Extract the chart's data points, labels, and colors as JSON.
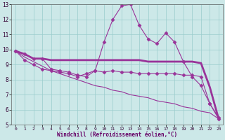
{
  "xlabel": "Windchill (Refroidissement éolien,°C)",
  "xlim": [
    -0.5,
    23.5
  ],
  "ylim": [
    5,
    13
  ],
  "xticks": [
    0,
    1,
    2,
    3,
    4,
    5,
    6,
    7,
    8,
    9,
    10,
    11,
    12,
    13,
    14,
    15,
    16,
    17,
    18,
    19,
    20,
    21,
    22,
    23
  ],
  "yticks": [
    5,
    6,
    7,
    8,
    9,
    10,
    11,
    12,
    13
  ],
  "background_color": "#cce8e8",
  "line_color": "#993399",
  "grid_color": "#99cccc",
  "series": [
    {
      "x": [
        0,
        1,
        2,
        3,
        4,
        5,
        6,
        7,
        8,
        9,
        10,
        11,
        12,
        13,
        14,
        15,
        16,
        17,
        18,
        19,
        20,
        21,
        22,
        23
      ],
      "y": [
        9.9,
        9.7,
        9.4,
        9.4,
        8.7,
        8.6,
        8.5,
        8.3,
        8.2,
        8.6,
        10.5,
        12.0,
        12.9,
        13.0,
        11.6,
        10.7,
        10.4,
        11.1,
        10.5,
        9.2,
        8.2,
        7.6,
        6.4,
        5.5
      ],
      "marker": "D",
      "markersize": 2.5,
      "linewidth": 0.8
    },
    {
      "x": [
        0,
        1,
        2,
        3,
        4,
        5,
        6,
        7,
        8,
        9,
        10,
        11,
        12,
        13,
        14,
        15,
        16,
        17,
        18,
        19,
        20,
        21,
        22,
        23
      ],
      "y": [
        9.9,
        9.7,
        9.4,
        9.4,
        9.3,
        9.3,
        9.3,
        9.3,
        9.3,
        9.3,
        9.3,
        9.3,
        9.3,
        9.3,
        9.3,
        9.2,
        9.2,
        9.2,
        9.2,
        9.2,
        9.2,
        9.1,
        7.5,
        5.4
      ],
      "marker": null,
      "markersize": 0,
      "linewidth": 2.0
    },
    {
      "x": [
        0,
        1,
        2,
        3,
        4,
        5,
        6,
        7,
        8,
        9,
        10,
        11,
        12,
        13,
        14,
        15,
        16,
        17,
        18,
        19,
        20,
        21,
        22,
        23
      ],
      "y": [
        9.9,
        9.3,
        9.0,
        8.7,
        8.6,
        8.5,
        8.4,
        8.2,
        8.4,
        8.6,
        8.5,
        8.6,
        8.5,
        8.5,
        8.4,
        8.4,
        8.4,
        8.4,
        8.4,
        8.3,
        8.3,
        8.2,
        6.4,
        5.4
      ],
      "marker": "D",
      "markersize": 2.5,
      "linewidth": 0.8
    },
    {
      "x": [
        0,
        1,
        2,
        3,
        4,
        5,
        6,
        7,
        8,
        9,
        10,
        11,
        12,
        13,
        14,
        15,
        16,
        17,
        18,
        19,
        20,
        21,
        22,
        23
      ],
      "y": [
        9.9,
        9.5,
        9.2,
        8.9,
        8.6,
        8.4,
        8.2,
        8.0,
        7.8,
        7.6,
        7.5,
        7.3,
        7.2,
        7.0,
        6.9,
        6.8,
        6.6,
        6.5,
        6.4,
        6.2,
        6.1,
        5.9,
        5.8,
        5.4
      ],
      "marker": null,
      "markersize": 0,
      "linewidth": 0.8
    }
  ]
}
